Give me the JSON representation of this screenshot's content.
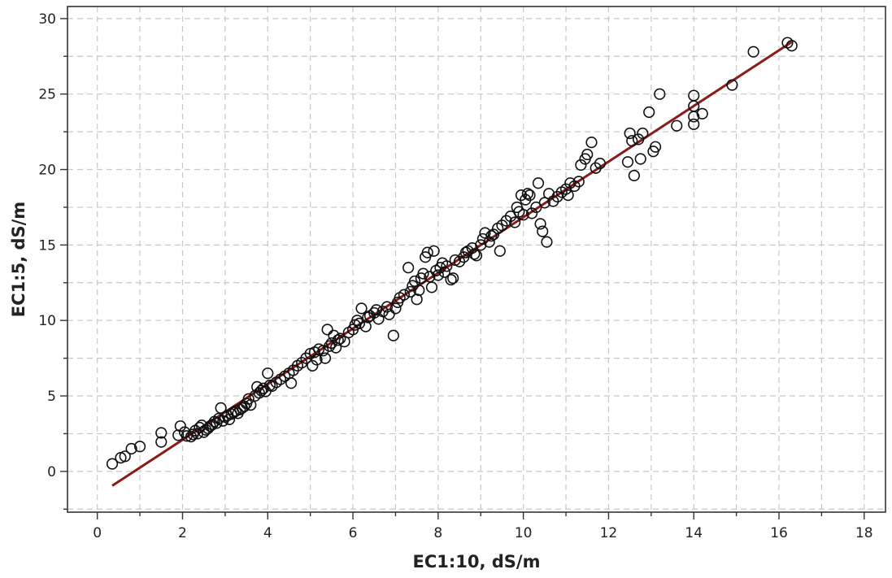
{
  "chart_data": {
    "type": "scatter",
    "title": "",
    "xlabel": "EC1:10, dS/m",
    "ylabel": "EC1:5, dS/m",
    "xlim": [
      -0.7,
      18.5
    ],
    "ylim": [
      -2.7,
      30.8
    ],
    "x_ticks": [
      0,
      2,
      4,
      6,
      8,
      10,
      12,
      14,
      16,
      18
    ],
    "y_ticks": [
      0,
      5,
      10,
      15,
      20,
      25,
      30
    ],
    "x_tick_labels": [
      "0",
      "2",
      "4",
      "6",
      "8",
      "10",
      "12",
      "14",
      "16",
      "18"
    ],
    "y_tick_labels": [
      "0",
      "5",
      "10",
      "15",
      "20",
      "25",
      "30"
    ],
    "grid": true,
    "grid_style": "dashed",
    "marker": "open-circle",
    "fit_line_color": "#8b1a1a",
    "fit_line": {
      "x": [
        0.35,
        16.3
      ],
      "y": [
        -0.95,
        28.45
      ]
    },
    "series": [
      {
        "points": [
          [
            0.35,
            0.5
          ],
          [
            0.55,
            0.9
          ],
          [
            0.65,
            1.0
          ],
          [
            0.8,
            1.5
          ],
          [
            1.0,
            1.65
          ],
          [
            1.5,
            1.95
          ],
          [
            1.5,
            2.55
          ],
          [
            1.9,
            2.4
          ],
          [
            1.95,
            3.0
          ],
          [
            2.05,
            2.6
          ],
          [
            2.1,
            2.35
          ],
          [
            2.2,
            2.3
          ],
          [
            2.25,
            2.45
          ],
          [
            2.3,
            2.7
          ],
          [
            2.35,
            2.5
          ],
          [
            2.4,
            2.9
          ],
          [
            2.45,
            3.05
          ],
          [
            2.5,
            2.6
          ],
          [
            2.55,
            2.75
          ],
          [
            2.6,
            2.85
          ],
          [
            2.65,
            3.0
          ],
          [
            2.7,
            3.1
          ],
          [
            2.75,
            3.3
          ],
          [
            2.8,
            3.2
          ],
          [
            2.85,
            3.5
          ],
          [
            2.9,
            4.2
          ],
          [
            2.95,
            3.35
          ],
          [
            3.0,
            3.6
          ],
          [
            3.05,
            3.7
          ],
          [
            3.1,
            3.45
          ],
          [
            3.15,
            3.8
          ],
          [
            3.2,
            3.9
          ],
          [
            3.25,
            4.0
          ],
          [
            3.3,
            3.85
          ],
          [
            3.35,
            4.1
          ],
          [
            3.4,
            4.2
          ],
          [
            3.45,
            4.3
          ],
          [
            3.5,
            4.5
          ],
          [
            3.55,
            4.8
          ],
          [
            3.6,
            4.4
          ],
          [
            3.7,
            5.0
          ],
          [
            3.75,
            5.6
          ],
          [
            3.8,
            5.2
          ],
          [
            3.85,
            5.35
          ],
          [
            3.9,
            5.5
          ],
          [
            3.95,
            5.3
          ],
          [
            4.0,
            6.5
          ],
          [
            4.05,
            5.7
          ],
          [
            4.1,
            5.65
          ],
          [
            4.2,
            5.9
          ],
          [
            4.3,
            6.1
          ],
          [
            4.4,
            6.3
          ],
          [
            4.5,
            6.5
          ],
          [
            4.55,
            5.85
          ],
          [
            4.6,
            6.7
          ],
          [
            4.7,
            7.0
          ],
          [
            4.8,
            7.2
          ],
          [
            4.9,
            7.5
          ],
          [
            5.0,
            7.8
          ],
          [
            5.05,
            7.0
          ],
          [
            5.1,
            7.9
          ],
          [
            5.15,
            7.4
          ],
          [
            5.2,
            8.1
          ],
          [
            5.3,
            8.0
          ],
          [
            5.35,
            7.5
          ],
          [
            5.4,
            9.4
          ],
          [
            5.45,
            8.3
          ],
          [
            5.5,
            8.5
          ],
          [
            5.55,
            9.0
          ],
          [
            5.6,
            8.2
          ],
          [
            5.65,
            8.7
          ],
          [
            5.7,
            8.8
          ],
          [
            5.8,
            8.6
          ],
          [
            5.9,
            9.2
          ],
          [
            6.0,
            9.4
          ],
          [
            6.05,
            9.7
          ],
          [
            6.1,
            10.0
          ],
          [
            6.15,
            9.8
          ],
          [
            6.2,
            10.8
          ],
          [
            6.3,
            9.6
          ],
          [
            6.35,
            10.2
          ],
          [
            6.4,
            10.3
          ],
          [
            6.5,
            10.5
          ],
          [
            6.55,
            10.7
          ],
          [
            6.6,
            10.1
          ],
          [
            6.7,
            10.6
          ],
          [
            6.8,
            10.9
          ],
          [
            6.85,
            10.4
          ],
          [
            6.95,
            9.0
          ],
          [
            7.0,
            10.8
          ],
          [
            7.05,
            11.2
          ],
          [
            7.1,
            11.5
          ],
          [
            7.2,
            11.7
          ],
          [
            7.3,
            13.5
          ],
          [
            7.35,
            11.9
          ],
          [
            7.4,
            12.3
          ],
          [
            7.45,
            12.6
          ],
          [
            7.5,
            11.4
          ],
          [
            7.55,
            12.0
          ],
          [
            7.6,
            12.8
          ],
          [
            7.65,
            13.1
          ],
          [
            7.7,
            14.2
          ],
          [
            7.75,
            14.5
          ],
          [
            7.8,
            12.9
          ],
          [
            7.85,
            12.2
          ],
          [
            7.9,
            14.6
          ],
          [
            7.95,
            13.3
          ],
          [
            8.0,
            13.0
          ],
          [
            8.05,
            13.5
          ],
          [
            8.1,
            13.8
          ],
          [
            8.15,
            13.2
          ],
          [
            8.2,
            13.6
          ],
          [
            8.3,
            12.7
          ],
          [
            8.35,
            12.8
          ],
          [
            8.4,
            14.0
          ],
          [
            8.5,
            13.9
          ],
          [
            8.6,
            14.2
          ],
          [
            8.65,
            14.5
          ],
          [
            8.7,
            14.6
          ],
          [
            8.8,
            14.8
          ],
          [
            8.85,
            14.4
          ],
          [
            8.9,
            14.3
          ],
          [
            9.0,
            15.0
          ],
          [
            9.05,
            15.4
          ],
          [
            9.1,
            15.8
          ],
          [
            9.2,
            15.2
          ],
          [
            9.25,
            15.6
          ],
          [
            9.3,
            15.7
          ],
          [
            9.4,
            16.1
          ],
          [
            9.45,
            14.6
          ],
          [
            9.5,
            16.3
          ],
          [
            9.6,
            16.6
          ],
          [
            9.7,
            16.9
          ],
          [
            9.8,
            16.5
          ],
          [
            9.85,
            17.5
          ],
          [
            9.9,
            17.2
          ],
          [
            9.95,
            18.3
          ],
          [
            10.0,
            17.0
          ],
          [
            10.05,
            18.0
          ],
          [
            10.1,
            18.4
          ],
          [
            10.15,
            18.3
          ],
          [
            10.2,
            17.1
          ],
          [
            10.3,
            17.5
          ],
          [
            10.35,
            19.1
          ],
          [
            10.4,
            16.4
          ],
          [
            10.45,
            15.9
          ],
          [
            10.5,
            17.8
          ],
          [
            10.55,
            15.2
          ],
          [
            10.6,
            18.4
          ],
          [
            10.7,
            17.9
          ],
          [
            10.8,
            18.2
          ],
          [
            10.9,
            18.5
          ],
          [
            11.0,
            18.7
          ],
          [
            11.05,
            18.3
          ],
          [
            11.1,
            19.1
          ],
          [
            11.2,
            18.9
          ],
          [
            11.3,
            19.2
          ],
          [
            11.35,
            20.3
          ],
          [
            11.45,
            20.7
          ],
          [
            11.5,
            21.0
          ],
          [
            11.6,
            21.8
          ],
          [
            11.7,
            20.1
          ],
          [
            11.8,
            20.4
          ],
          [
            12.45,
            20.5
          ],
          [
            12.5,
            22.4
          ],
          [
            12.55,
            21.9
          ],
          [
            12.6,
            19.6
          ],
          [
            12.7,
            22.0
          ],
          [
            12.75,
            20.7
          ],
          [
            12.8,
            22.4
          ],
          [
            12.95,
            23.8
          ],
          [
            13.05,
            21.2
          ],
          [
            13.1,
            21.5
          ],
          [
            13.2,
            25.0
          ],
          [
            13.6,
            22.9
          ],
          [
            14.0,
            23.0
          ],
          [
            14.0,
            23.5
          ],
          [
            14.0,
            24.2
          ],
          [
            14.0,
            24.9
          ],
          [
            14.2,
            23.7
          ],
          [
            14.9,
            25.6
          ],
          [
            15.4,
            27.8
          ],
          [
            16.2,
            28.4
          ],
          [
            16.3,
            28.2
          ]
        ]
      }
    ]
  }
}
